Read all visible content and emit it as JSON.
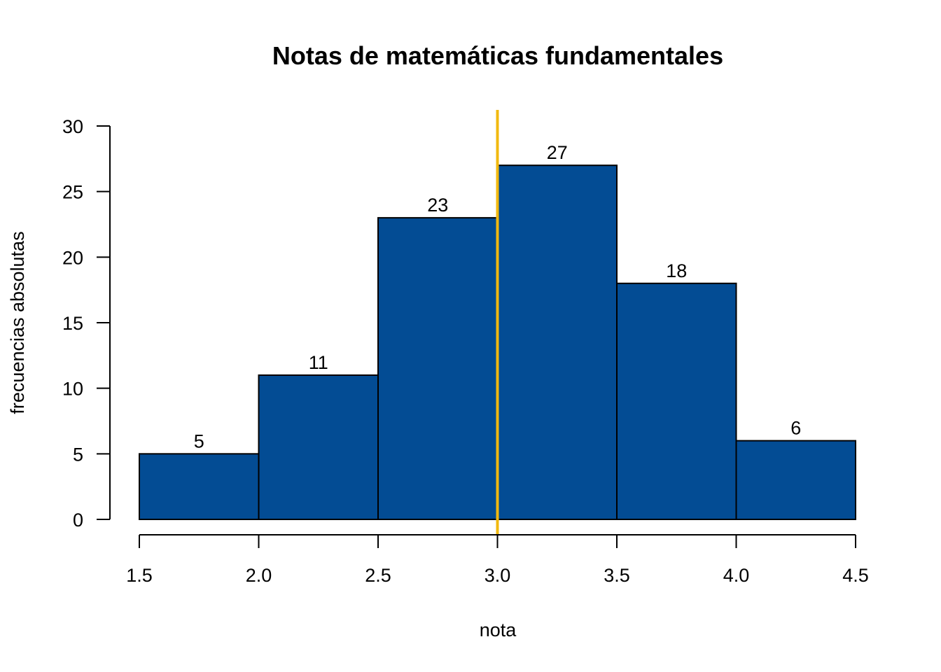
{
  "chart_data": {
    "type": "bar",
    "subtype": "histogram",
    "title": "Notas de matemáticas fundamentales",
    "xlabel": "nota",
    "ylabel": "frecuencias absolutas",
    "bins": [
      {
        "from": 1.5,
        "to": 2.0,
        "value": 5
      },
      {
        "from": 2.0,
        "to": 2.5,
        "value": 11
      },
      {
        "from": 2.5,
        "to": 3.0,
        "value": 23
      },
      {
        "from": 3.0,
        "to": 3.5,
        "value": 27
      },
      {
        "from": 3.5,
        "to": 4.0,
        "value": 18
      },
      {
        "from": 4.0,
        "to": 4.5,
        "value": 6
      }
    ],
    "data_labels": [
      "5",
      "11",
      "23",
      "27",
      "18",
      "6"
    ],
    "xlim": [
      1.5,
      4.5
    ],
    "ylim": [
      0,
      30
    ],
    "x_ticks": [
      1.5,
      2.0,
      2.5,
      3.0,
      3.5,
      4.0,
      4.5
    ],
    "x_tick_labels": [
      "1.5",
      "2.0",
      "2.5",
      "3.0",
      "3.5",
      "4.0",
      "4.5"
    ],
    "y_ticks": [
      0,
      5,
      10,
      15,
      20,
      25,
      30
    ],
    "y_tick_labels": [
      "0",
      "5",
      "10",
      "15",
      "20",
      "25",
      "30"
    ],
    "reference_line": {
      "x": 3.0,
      "color": "#f2b90f"
    },
    "bar_color": "#034c94",
    "grid": false,
    "legend": "none"
  }
}
